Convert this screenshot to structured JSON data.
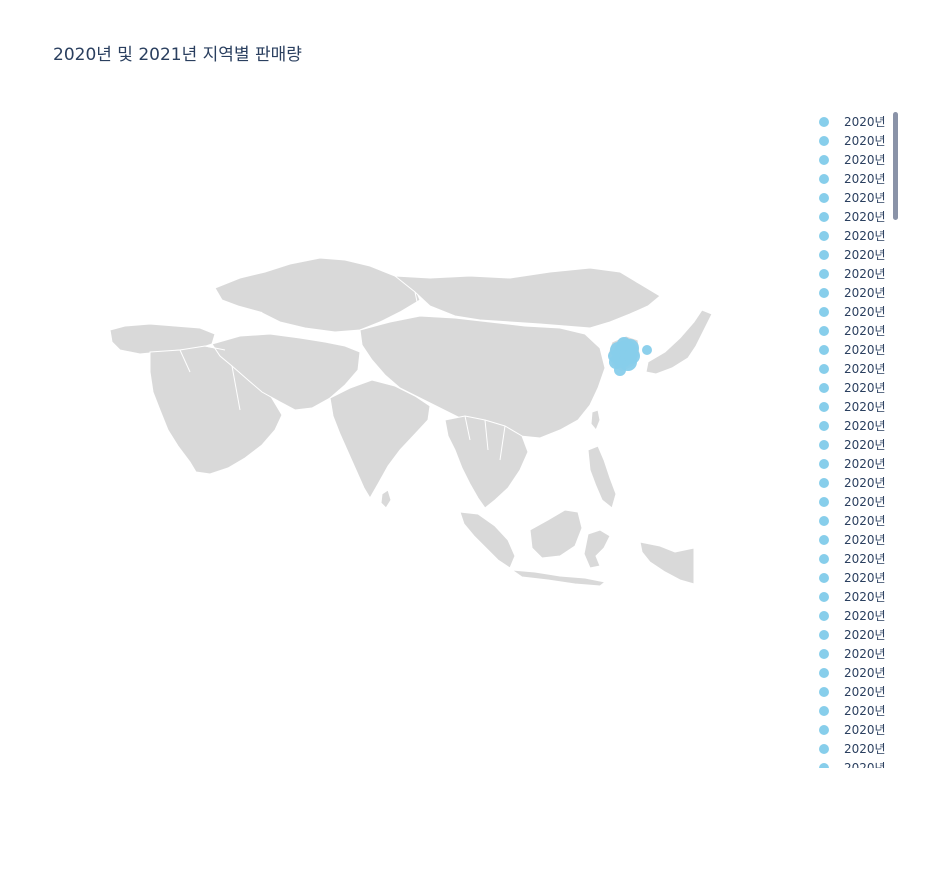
{
  "title": "2020년 및 2021년 지역별 판매량",
  "colors": {
    "land": "#d9d9d9",
    "borders": "#ffffff",
    "marker": "#87ceeb",
    "text": "#2a3f5f",
    "scrollbar": "#8a93a8"
  },
  "legend": {
    "item_label": "2020년",
    "visible_count": 35
  }
}
